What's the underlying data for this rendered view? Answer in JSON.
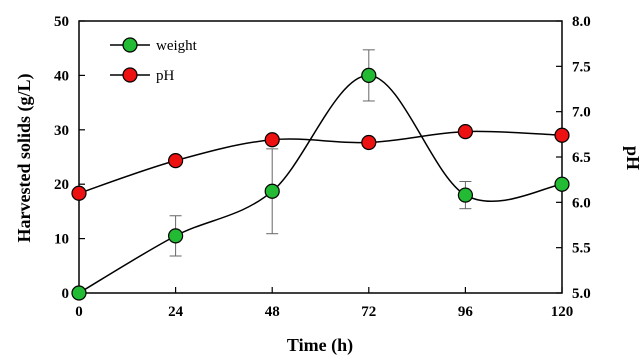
{
  "chart_data": {
    "type": "line",
    "xlabel": "Time (h)",
    "ylabel": "Harvested solids (g/L)",
    "y2label": "pH",
    "x": [
      0,
      24,
      48,
      72,
      96,
      120
    ],
    "xlim": [
      0,
      120
    ],
    "ylim": [
      0,
      50
    ],
    "y2lim": [
      5.0,
      8.0
    ],
    "x_ticks": [
      "0",
      "24",
      "48",
      "72",
      "96",
      "120"
    ],
    "y_ticks": [
      "0",
      "10",
      "20",
      "30",
      "40",
      "50"
    ],
    "y2_ticks": [
      "5.0",
      "5.5",
      "6.0",
      "6.5",
      "7.0",
      "7.5",
      "8.0"
    ],
    "grid": false,
    "legend_position": "top-left",
    "series": [
      {
        "name": "weight",
        "axis": "left",
        "values": [
          0,
          10.5,
          18.7,
          40.0,
          18.0,
          20.0
        ],
        "error": [
          0,
          3.7,
          7.8,
          4.7,
          2.5,
          0
        ],
        "color": "#22bb33"
      },
      {
        "name": "pH",
        "axis": "right",
        "values": [
          6.1,
          6.46,
          6.69,
          6.66,
          6.78,
          6.74
        ],
        "color": "#ee1111"
      }
    ]
  }
}
